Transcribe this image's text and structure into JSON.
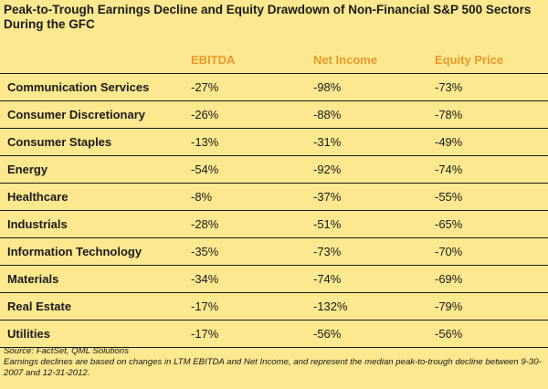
{
  "title": "Peak-to-Trough Earnings Decline and Equity Drawdown of Non-Financial S&P 500 Sectors During the GFC",
  "colors": {
    "background": "#fbe88f",
    "header_accent": "#e89a2a",
    "text": "#1a1a1a"
  },
  "table": {
    "headers": [
      "EBITDA",
      "Net Income",
      "Equity Price"
    ],
    "rows": [
      {
        "sector": "Communication Services",
        "ebitda": "-27%",
        "net_income": "-98%",
        "equity_price": "-73%"
      },
      {
        "sector": "Consumer Discretionary",
        "ebitda": "-26%",
        "net_income": "-88%",
        "equity_price": "-78%"
      },
      {
        "sector": "Consumer Staples",
        "ebitda": "-13%",
        "net_income": "-31%",
        "equity_price": "-49%"
      },
      {
        "sector": "Energy",
        "ebitda": "-54%",
        "net_income": "-92%",
        "equity_price": "-74%"
      },
      {
        "sector": "Healthcare",
        "ebitda": "-8%",
        "net_income": "-37%",
        "equity_price": "-55%"
      },
      {
        "sector": "Industrials",
        "ebitda": "-28%",
        "net_income": "-51%",
        "equity_price": "-65%"
      },
      {
        "sector": "Information Technology",
        "ebitda": "-35%",
        "net_income": "-73%",
        "equity_price": "-70%"
      },
      {
        "sector": "Materials",
        "ebitda": "-34%",
        "net_income": "-74%",
        "equity_price": "-69%"
      },
      {
        "sector": "Real Estate",
        "ebitda": "-17%",
        "net_income": "-132%",
        "equity_price": "-79%"
      },
      {
        "sector": "Utilities",
        "ebitda": "-17%",
        "net_income": "-56%",
        "equity_price": "-56%"
      }
    ]
  },
  "footnotes": {
    "source": "Source: FactSet, QML Solutions",
    "note": "Earnings declines are based on changes in LTM EBITDA and Net Income, and represent the median peak-to-trough decline between 9-30-2007 and 12-31-2012."
  }
}
